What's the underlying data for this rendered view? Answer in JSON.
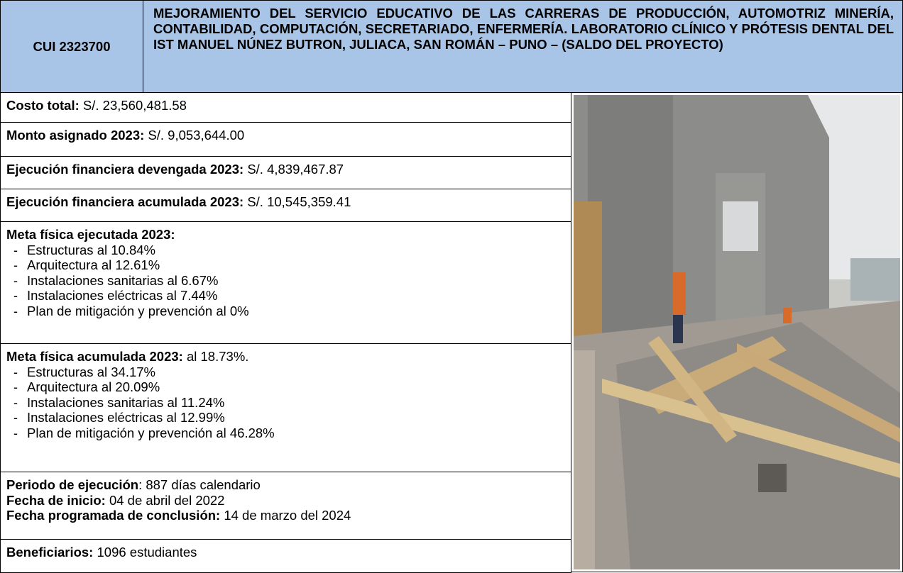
{
  "header": {
    "cui": "CUI 2323700",
    "title": "MEJORAMIENTO DEL SERVICIO EDUCATIVO DE LAS CARRERAS DE PRODUCCIÓN, AUTOMOTRIZ MINERÍA, CONTABILIDAD, COMPUTACIÓN, SECRETARIADO, ENFERMERÍA. LABORATORIO CLÍNICO Y PRÓTESIS DENTAL DEL IST MANUEL NÚNEZ BUTRON, JULIACA, SAN ROMÁN – PUNO – (SALDO DEL PROYECTO)"
  },
  "sections": [
    {
      "label": "Costo total:",
      "value": "S/. 23,560,481.58"
    },
    {
      "label": "Monto asignado 2023:",
      "value": "S/. 9,053,644.00"
    },
    {
      "label": "Ejecución financiera devengada 2023:",
      "value": "S/. 4,839,467.87"
    },
    {
      "label": "Ejecución financiera acumulada 2023:",
      "value": "S/. 10,545,359.41"
    },
    {
      "label": "Meta física ejecutada 2023:",
      "items": [
        "Estructuras al 10.84%",
        "Arquitectura al 12.61%",
        "Instalaciones sanitarias al 6.67%",
        "Instalaciones eléctricas al 7.44%",
        "Plan de mitigación y prevención al 0%"
      ]
    },
    {
      "label": "Meta física acumulada 2023:",
      "value": "al 18.73%.",
      "items": [
        "Estructuras al 34.17%",
        "Arquitectura al 20.09%",
        "Instalaciones sanitarias al 11.24%",
        "Instalaciones eléctricas al 12.99%",
        "Plan de mitigación y prevención al 46.28%"
      ]
    },
    {
      "lines": [
        {
          "label": "Periodo de ejecución",
          "value": ": 887 días calendario"
        },
        {
          "label": "Fecha de inicio:",
          "value": "04 de abril del 2022"
        },
        {
          "label": "Fecha programada de conclusión:",
          "value": "14 de marzo del 2024"
        }
      ]
    },
    {
      "label": "Beneficiarios:",
      "value": "1096 estudiantes"
    }
  ]
}
